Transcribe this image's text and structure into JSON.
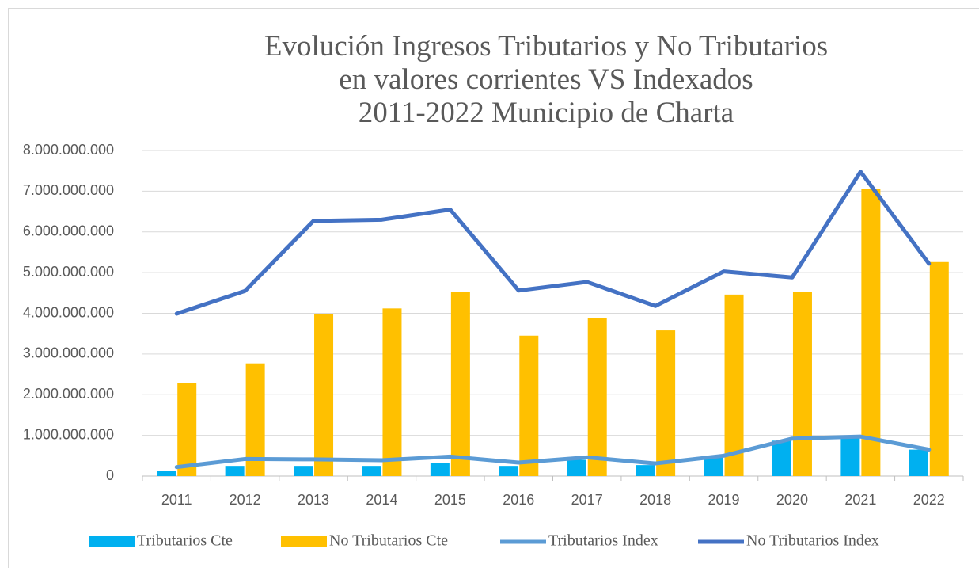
{
  "chart_data": {
    "type": "bar_line",
    "title": [
      "Evolución Ingresos Tributarios y No Tributarios",
      "en valores corrientes VS Indexados",
      "2011-2022 Municipio de Charta"
    ],
    "categories": [
      "2011",
      "2012",
      "2013",
      "2014",
      "2015",
      "2016",
      "2017",
      "2018",
      "2019",
      "2020",
      "2021",
      "2022"
    ],
    "series": [
      {
        "name": "Tributarios Cte",
        "type": "bar",
        "color": "#00b0f0",
        "values": [
          120000000,
          250000000,
          250000000,
          250000000,
          330000000,
          250000000,
          400000000,
          270000000,
          480000000,
          870000000,
          950000000,
          650000000
        ]
      },
      {
        "name": "No Tributarios Cte",
        "type": "bar",
        "color": "#ffc000",
        "values": [
          2280000000,
          2770000000,
          3980000000,
          4120000000,
          4530000000,
          3450000000,
          3890000000,
          3580000000,
          4460000000,
          4520000000,
          7060000000,
          5260000000
        ]
      },
      {
        "name": "Tributarios Index",
        "type": "line",
        "color": "#5b9bd5",
        "values": [
          220000000,
          420000000,
          410000000,
          390000000,
          480000000,
          330000000,
          460000000,
          310000000,
          500000000,
          920000000,
          970000000,
          650000000
        ]
      },
      {
        "name": "No Tributarios Index",
        "type": "line",
        "color": "#4472c4",
        "values": [
          3990000000,
          4550000000,
          6270000000,
          6300000000,
          6550000000,
          4560000000,
          4770000000,
          4180000000,
          5030000000,
          4880000000,
          7480000000,
          5220000000
        ]
      }
    ],
    "ylim": [
      0,
      8000000000
    ],
    "yticks": [
      0,
      {
        "value": 1000000000,
        "label": "1.000.000.000"
      },
      {
        "value": 2000000000,
        "label": "2.000.000.000"
      },
      {
        "value": 3000000000,
        "label": "3.000.000.000"
      },
      {
        "value": 4000000000,
        "label": "4.000.000.000"
      },
      {
        "value": 5000000000,
        "label": "5.000.000.000"
      },
      {
        "value": 6000000000,
        "label": "6.000.000.000"
      },
      {
        "value": 7000000000,
        "label": "7.000.000.000"
      },
      {
        "value": 8000000000,
        "label": "8.000.000.000"
      }
    ],
    "grid": true,
    "legend": "bottom"
  }
}
